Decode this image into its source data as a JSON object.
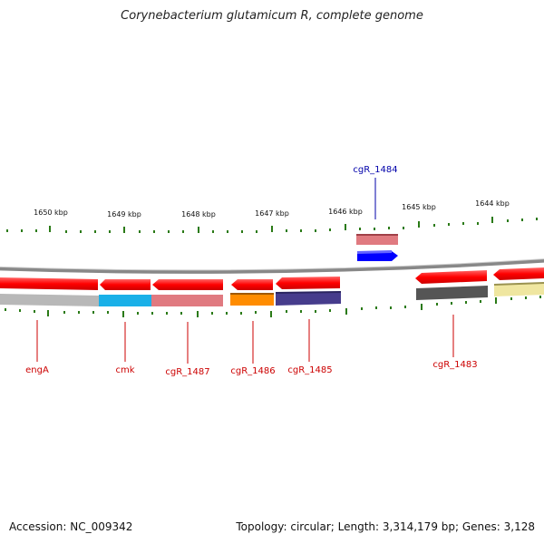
{
  "title": "Corynebacterium glutamicum R, complete genome",
  "footer": {
    "accession": "Accession: NC_009342",
    "topology": "Topology: circular; Length: 3,314,179 bp; Genes: 3,128"
  },
  "ruler": {
    "labels": [
      "1650 kbp",
      "1649 kbp",
      "1648 kbp",
      "1647 kbp",
      "1646 kbp",
      "1645 kbp",
      "1644 kbp"
    ]
  },
  "genes": [
    {
      "name": "engA",
      "color": "#cc0000"
    },
    {
      "name": "cmk",
      "color": "#cc0000"
    },
    {
      "name": "cgR_1487",
      "color": "#cc0000"
    },
    {
      "name": "cgR_1486",
      "color": "#cc0000"
    },
    {
      "name": "cgR_1485",
      "color": "#cc0000"
    },
    {
      "name": "cgR_1484",
      "color": "#0000aa"
    },
    {
      "name": "cgR_1483",
      "color": "#cc0000"
    }
  ],
  "colors": {
    "arrow_red": "#ff0000",
    "arrow_blue": "#0000ff",
    "tick_green": "#2a7a16",
    "backbone": "#888888",
    "cog_gray": "#b8b8b8",
    "cog_cyan": "#1ab0e8",
    "cog_pink": "#e07a80",
    "cog_orange": "#ff8c00",
    "cog_navy": "#463c8c",
    "cog_dark": "#555555",
    "cog_yellow": "#efe6a0"
  }
}
